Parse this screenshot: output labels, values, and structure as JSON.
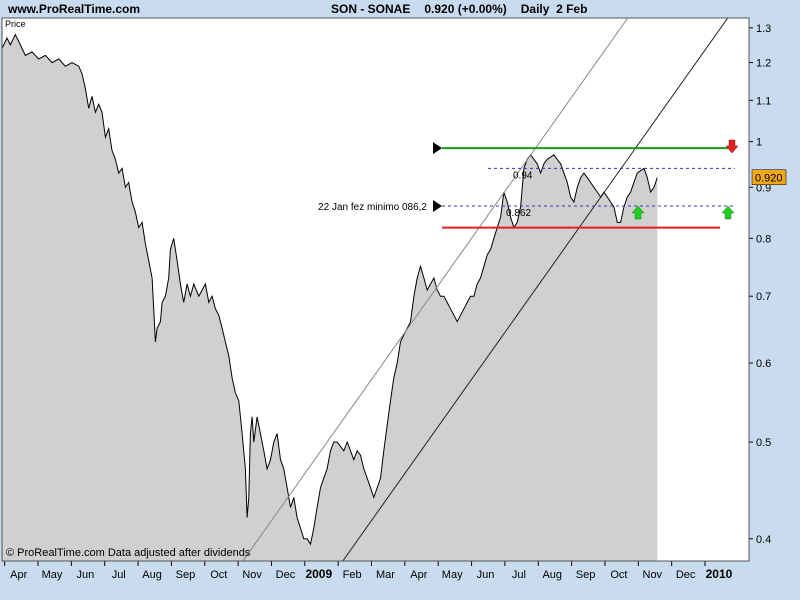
{
  "site": "www.ProRealTime.com",
  "header": {
    "symbol": "SON - SONAE",
    "price": "0.920 (+0.00%)",
    "period": "Daily  2 Feb"
  },
  "price_label": "Price",
  "credit": "© ProRealTime.com  Data adjusted after dividends",
  "chart_data": {
    "type": "area",
    "y_scale": "log",
    "ylim": [
      0.38,
      1.33
    ],
    "y_ticks": [
      {
        "label": "1.3",
        "value": 1.3
      },
      {
        "label": "1.2",
        "value": 1.2
      },
      {
        "label": "1.1",
        "value": 1.1
      },
      {
        "label": "1",
        "value": 1.0
      },
      {
        "label": "0.9",
        "value": 0.9
      },
      {
        "label": "0.8",
        "value": 0.8
      },
      {
        "label": "0.7",
        "value": 0.7
      },
      {
        "label": "0.6",
        "value": 0.6
      },
      {
        "label": "0.5",
        "value": 0.5
      },
      {
        "label": "0.4",
        "value": 0.4
      }
    ],
    "x_ticks": [
      "Apr",
      "May",
      "Jun",
      "Jul",
      "Aug",
      "Sep",
      "Oct",
      "Nov",
      "Dec",
      "2009",
      "Feb",
      "Mar",
      "Apr",
      "May",
      "Jun",
      "Jul",
      "Aug",
      "Sep",
      "Oct",
      "Nov",
      "Dec",
      "2010"
    ],
    "x_ticks_bold": [
      "2009",
      "2010"
    ],
    "xlim_months": [
      -0.5,
      21.9
    ],
    "series": [
      {
        "points": [
          [
            -0.5,
            1.24
          ],
          [
            -0.35,
            1.27
          ],
          [
            -0.25,
            1.25
          ],
          [
            -0.1,
            1.28
          ],
          [
            0.0,
            1.26
          ],
          [
            0.2,
            1.22
          ],
          [
            0.4,
            1.23
          ],
          [
            0.6,
            1.21
          ],
          [
            0.8,
            1.22
          ],
          [
            1.0,
            1.2
          ],
          [
            1.2,
            1.21
          ],
          [
            1.4,
            1.19
          ],
          [
            1.6,
            1.2
          ],
          [
            1.8,
            1.19
          ],
          [
            1.9,
            1.17
          ],
          [
            2.0,
            1.13
          ],
          [
            2.1,
            1.08
          ],
          [
            2.2,
            1.11
          ],
          [
            2.3,
            1.07
          ],
          [
            2.4,
            1.09
          ],
          [
            2.5,
            1.07
          ],
          [
            2.6,
            1.01
          ],
          [
            2.7,
            1.03
          ],
          [
            2.8,
            0.98
          ],
          [
            2.9,
            0.96
          ],
          [
            3.0,
            0.93
          ],
          [
            3.1,
            0.94
          ],
          [
            3.2,
            0.9
          ],
          [
            3.3,
            0.91
          ],
          [
            3.4,
            0.87
          ],
          [
            3.5,
            0.85
          ],
          [
            3.6,
            0.82
          ],
          [
            3.7,
            0.83
          ],
          [
            3.8,
            0.79
          ],
          [
            3.9,
            0.76
          ],
          [
            4.0,
            0.73
          ],
          [
            4.05,
            0.68
          ],
          [
            4.1,
            0.63
          ],
          [
            4.15,
            0.65
          ],
          [
            4.25,
            0.66
          ],
          [
            4.3,
            0.69
          ],
          [
            4.4,
            0.7
          ],
          [
            4.5,
            0.73
          ],
          [
            4.55,
            0.78
          ],
          [
            4.65,
            0.8
          ],
          [
            4.75,
            0.76
          ],
          [
            4.85,
            0.72
          ],
          [
            4.95,
            0.69
          ],
          [
            5.05,
            0.72
          ],
          [
            5.15,
            0.7
          ],
          [
            5.25,
            0.72
          ],
          [
            5.4,
            0.7
          ],
          [
            5.5,
            0.71
          ],
          [
            5.6,
            0.72
          ],
          [
            5.7,
            0.69
          ],
          [
            5.8,
            0.7
          ],
          [
            5.9,
            0.68
          ],
          [
            6.0,
            0.67
          ],
          [
            6.1,
            0.65
          ],
          [
            6.2,
            0.63
          ],
          [
            6.3,
            0.61
          ],
          [
            6.4,
            0.58
          ],
          [
            6.5,
            0.56
          ],
          [
            6.6,
            0.55
          ],
          [
            6.7,
            0.51
          ],
          [
            6.8,
            0.47
          ],
          [
            6.85,
            0.42
          ],
          [
            6.9,
            0.44
          ],
          [
            6.95,
            0.51
          ],
          [
            7.0,
            0.53
          ],
          [
            7.05,
            0.5
          ],
          [
            7.15,
            0.53
          ],
          [
            7.25,
            0.51
          ],
          [
            7.35,
            0.49
          ],
          [
            7.45,
            0.47
          ],
          [
            7.55,
            0.48
          ],
          [
            7.65,
            0.5
          ],
          [
            7.75,
            0.51
          ],
          [
            7.85,
            0.48
          ],
          [
            7.95,
            0.47
          ],
          [
            8.05,
            0.45
          ],
          [
            8.15,
            0.43
          ],
          [
            8.25,
            0.44
          ],
          [
            8.35,
            0.42
          ],
          [
            8.45,
            0.41
          ],
          [
            8.55,
            0.4
          ],
          [
            8.65,
            0.4
          ],
          [
            8.75,
            0.395
          ],
          [
            8.85,
            0.41
          ],
          [
            8.95,
            0.43
          ],
          [
            9.05,
            0.45
          ],
          [
            9.15,
            0.46
          ],
          [
            9.25,
            0.47
          ],
          [
            9.35,
            0.49
          ],
          [
            9.45,
            0.5
          ],
          [
            9.55,
            0.5
          ],
          [
            9.65,
            0.495
          ],
          [
            9.75,
            0.49
          ],
          [
            9.85,
            0.5
          ],
          [
            9.95,
            0.49
          ],
          [
            10.05,
            0.48
          ],
          [
            10.15,
            0.49
          ],
          [
            10.25,
            0.485
          ],
          [
            10.35,
            0.47
          ],
          [
            10.45,
            0.46
          ],
          [
            10.55,
            0.45
          ],
          [
            10.65,
            0.44
          ],
          [
            10.75,
            0.45
          ],
          [
            10.85,
            0.46
          ],
          [
            10.95,
            0.49
          ],
          [
            11.05,
            0.52
          ],
          [
            11.15,
            0.55
          ],
          [
            11.25,
            0.58
          ],
          [
            11.35,
            0.6
          ],
          [
            11.45,
            0.63
          ],
          [
            11.55,
            0.64
          ],
          [
            11.65,
            0.65
          ],
          [
            11.75,
            0.66
          ],
          [
            11.85,
            0.7
          ],
          [
            11.95,
            0.73
          ],
          [
            12.05,
            0.75
          ],
          [
            12.15,
            0.73
          ],
          [
            12.25,
            0.71
          ],
          [
            12.35,
            0.72
          ],
          [
            12.45,
            0.73
          ],
          [
            12.55,
            0.71
          ],
          [
            12.65,
            0.7
          ],
          [
            12.75,
            0.7
          ],
          [
            12.85,
            0.69
          ],
          [
            12.95,
            0.68
          ],
          [
            13.05,
            0.67
          ],
          [
            13.15,
            0.66
          ],
          [
            13.25,
            0.67
          ],
          [
            13.35,
            0.68
          ],
          [
            13.45,
            0.69
          ],
          [
            13.55,
            0.7
          ],
          [
            13.65,
            0.7
          ],
          [
            13.75,
            0.72
          ],
          [
            13.85,
            0.73
          ],
          [
            13.95,
            0.75
          ],
          [
            14.05,
            0.77
          ],
          [
            14.15,
            0.78
          ],
          [
            14.25,
            0.8
          ],
          [
            14.35,
            0.82
          ],
          [
            14.45,
            0.84
          ],
          [
            14.55,
            0.89
          ],
          [
            14.65,
            0.87
          ],
          [
            14.75,
            0.84
          ],
          [
            14.85,
            0.82
          ],
          [
            14.95,
            0.83
          ],
          [
            15.05,
            0.86
          ],
          [
            15.15,
            0.94
          ],
          [
            15.25,
            0.96
          ],
          [
            15.35,
            0.97
          ],
          [
            15.45,
            0.96
          ],
          [
            15.55,
            0.95
          ],
          [
            15.65,
            0.93
          ],
          [
            15.75,
            0.95
          ],
          [
            15.85,
            0.96
          ],
          [
            15.95,
            0.965
          ],
          [
            16.05,
            0.97
          ],
          [
            16.15,
            0.96
          ],
          [
            16.25,
            0.95
          ],
          [
            16.35,
            0.93
          ],
          [
            16.45,
            0.91
          ],
          [
            16.55,
            0.88
          ],
          [
            16.65,
            0.87
          ],
          [
            16.75,
            0.9
          ],
          [
            16.85,
            0.92
          ],
          [
            16.95,
            0.93
          ],
          [
            17.05,
            0.92
          ],
          [
            17.15,
            0.91
          ],
          [
            17.25,
            0.9
          ],
          [
            17.35,
            0.89
          ],
          [
            17.45,
            0.88
          ],
          [
            17.55,
            0.89
          ],
          [
            17.65,
            0.88
          ],
          [
            17.75,
            0.87
          ],
          [
            17.85,
            0.86
          ],
          [
            17.95,
            0.83
          ],
          [
            18.05,
            0.83
          ],
          [
            18.15,
            0.86
          ],
          [
            18.25,
            0.88
          ],
          [
            18.35,
            0.89
          ],
          [
            18.45,
            0.91
          ],
          [
            18.55,
            0.93
          ],
          [
            18.65,
            0.935
          ],
          [
            18.75,
            0.94
          ],
          [
            18.85,
            0.92
          ],
          [
            18.95,
            0.89
          ],
          [
            19.05,
            0.9
          ],
          [
            19.15,
            0.92
          ]
        ]
      }
    ],
    "horizontal_lines": [
      {
        "label": "",
        "value": 0.985,
        "color": "#1a9b1a",
        "style": "solid"
      },
      {
        "label": "0.94",
        "value": 0.94,
        "color": "#3333cc",
        "style": "dashed"
      },
      {
        "label": "0.862",
        "value": 0.862,
        "color": "#3333cc",
        "style": "dashed"
      },
      {
        "label": "",
        "value": 0.82,
        "color": "#e02020",
        "style": "solid"
      }
    ],
    "annotations": [
      {
        "text": "22 Jan fez minimo 086,2",
        "value": 0.862
      }
    ],
    "last_price_label": "0.920",
    "colors": {
      "background": "#ffffff",
      "area_fill": "#d0d0d0",
      "frame": "#c9dcef",
      "last_price_box": "#f0a818",
      "up_arrow": "#22cc22",
      "down_arrow": "#dd2222"
    }
  }
}
